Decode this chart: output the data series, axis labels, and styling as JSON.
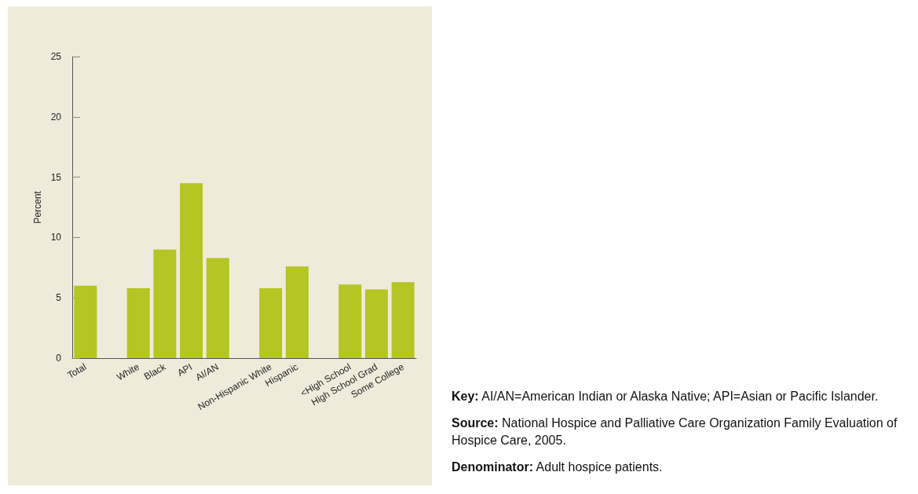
{
  "chart_data": {
    "type": "bar",
    "categories": [
      "Total",
      null,
      "White",
      "Black",
      "API",
      "AI/AN",
      null,
      "Non-Hispanic White",
      "Hispanic",
      null,
      "<High School",
      "High School Grad",
      "Some College"
    ],
    "values": [
      6.0,
      null,
      5.8,
      9.0,
      14.5,
      8.3,
      null,
      5.8,
      7.6,
      null,
      6.1,
      5.7,
      6.3
    ],
    "color": "#b5c523",
    "ylabel": "Percent",
    "ylim": [
      0,
      25
    ],
    "yticks": [
      0,
      5,
      10,
      15,
      20,
      25
    ],
    "grid": false,
    "annotations": [
      "Key: AI/AN=American Indian or Alaska Native; API=Asian or Pacific Islander.",
      "Source:  National Hospice and Palliative Care Organization Family Evaluation of Hospice Care, 2005.",
      "Denominator:  Adult hospice patients."
    ]
  }
}
